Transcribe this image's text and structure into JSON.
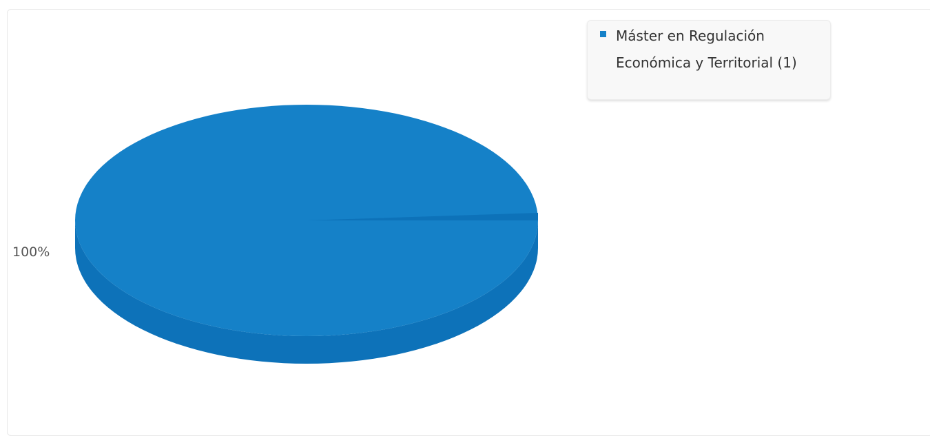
{
  "chart_data": {
    "type": "pie",
    "slices": [
      {
        "label": "Máster en Regulación Económica y Territorial",
        "count": 1,
        "percent": 100
      }
    ],
    "data_labels": [
      "100%"
    ],
    "legend": {
      "placement": "top-right",
      "entries": [
        "Máster en Regulación Económica y Territorial (1)"
      ]
    },
    "colors": {
      "slice_top": "#1581c8",
      "slice_side": "#0d72b9",
      "legend_marker": "#1581c8"
    }
  }
}
